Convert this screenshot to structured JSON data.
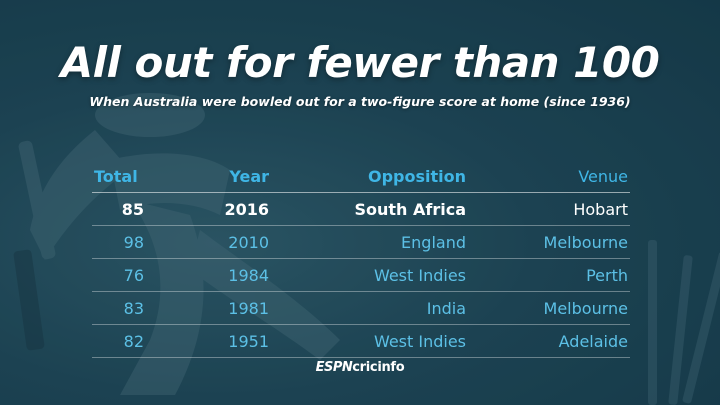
{
  "title": "All out for fewer than 100",
  "subtitle": "When Australia were bowled out for a two-figure score at home (since 1936)",
  "table": {
    "headers": {
      "total": "Total",
      "year": "Year",
      "opposition": "Opposition",
      "venue": "Venue"
    },
    "rows": [
      {
        "total": "85",
        "year": "2016",
        "opposition": "South Africa",
        "venue": "Hobart"
      },
      {
        "total": "98",
        "year": "2010",
        "opposition": "England",
        "venue": "Melbourne"
      },
      {
        "total": "76",
        "year": "1984",
        "opposition": "West Indies",
        "venue": "Perth"
      },
      {
        "total": "83",
        "year": "1981",
        "opposition": "India",
        "venue": "Melbourne"
      },
      {
        "total": "82",
        "year": "1951",
        "opposition": "West Indies",
        "venue": "Adelaide"
      }
    ]
  },
  "logo": {
    "brand": "ESPN",
    "product": "cricinfo"
  },
  "colors": {
    "background": "#1f4656",
    "header_text": "#3fb6e6",
    "highlight_text": "#ffffff",
    "row_text": "#5cc0e6"
  }
}
